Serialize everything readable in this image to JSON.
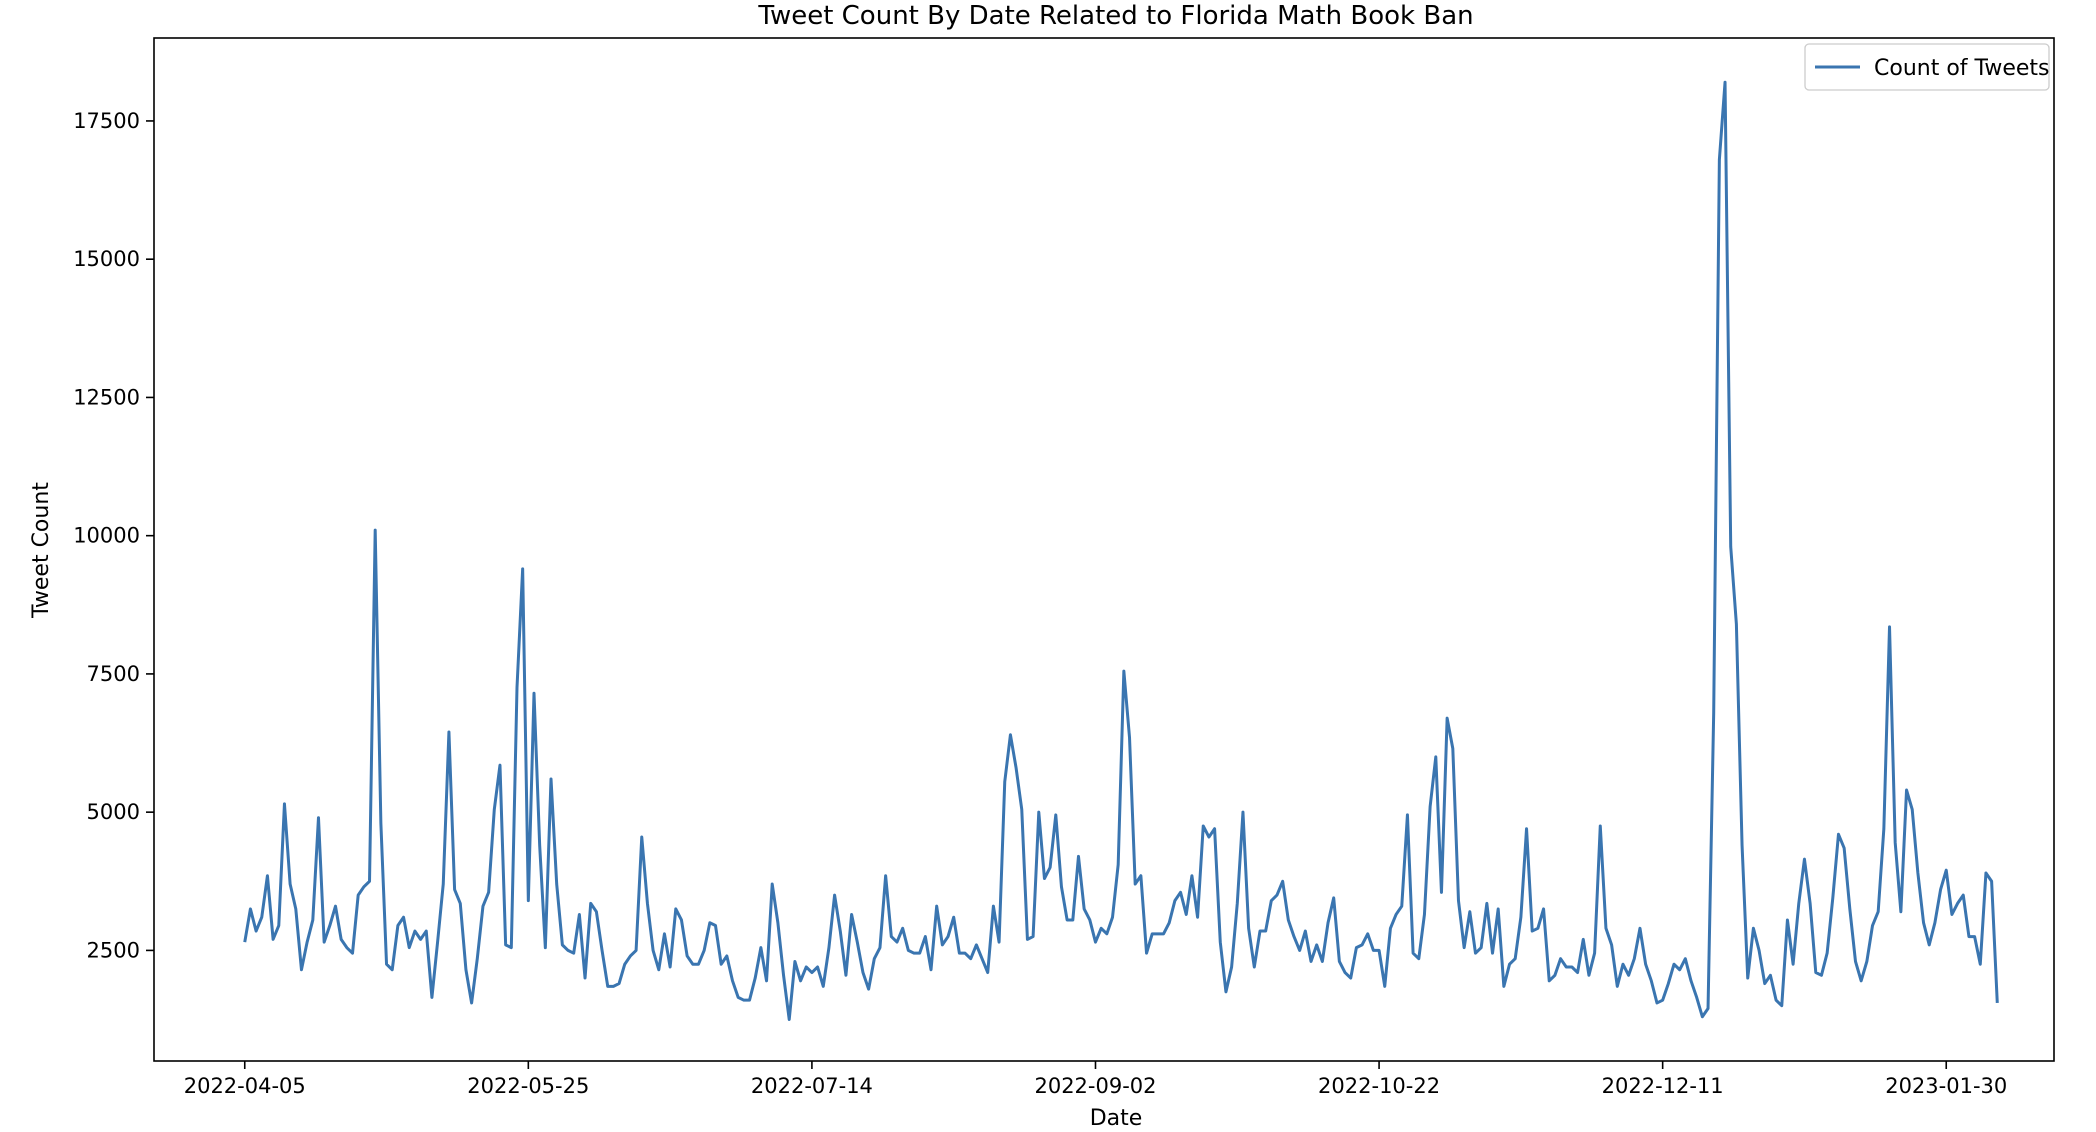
{
  "chart_data": {
    "type": "line",
    "title": "Tweet Count By Date Related to Florida Math Book Ban",
    "xlabel": "Date",
    "ylabel": "Tweet Count",
    "x_start": "2022-04-05",
    "x_end": "2023-02-08",
    "xlim": [
      "2022-03-20",
      "2023-02-18"
    ],
    "ylim": [
      500,
      19000
    ],
    "x_ticks": [
      "2022-04-05",
      "2022-05-25",
      "2022-07-14",
      "2022-09-02",
      "2022-10-22",
      "2022-12-11",
      "2023-01-30"
    ],
    "y_ticks": [
      2500,
      5000,
      7500,
      10000,
      12500,
      15000,
      17500
    ],
    "grid": false,
    "legend_position": "upper right",
    "line_color": "#3a75b0",
    "series": [
      {
        "name": "Count of Tweets",
        "values": [
          2650,
          3250,
          2850,
          3100,
          3850,
          2700,
          2950,
          5150,
          3700,
          3250,
          2150,
          2650,
          3050,
          4900,
          2650,
          2950,
          3300,
          2700,
          2550,
          2450,
          3500,
          3650,
          3750,
          10100,
          4800,
          2250,
          2150,
          2950,
          3100,
          2550,
          2850,
          2700,
          2850,
          1650,
          2650,
          3700,
          6450,
          3600,
          3350,
          2150,
          1550,
          2350,
          3300,
          3550,
          5050,
          5850,
          2600,
          2550,
          7250,
          9400,
          3400,
          7150,
          4400,
          2550,
          5600,
          3700,
          2600,
          2500,
          2450,
          3150,
          2000,
          3350,
          3200,
          2500,
          1850,
          1850,
          1900,
          2250,
          2400,
          2500,
          4550,
          3350,
          2500,
          2150,
          2800,
          2200,
          3250,
          3050,
          2400,
          2250,
          2250,
          2500,
          3000,
          2950,
          2250,
          2400,
          1950,
          1650,
          1600,
          1600,
          2000,
          2550,
          1950,
          3700,
          3000,
          2050,
          1250,
          2300,
          1950,
          2200,
          2100,
          2200,
          1850,
          2550,
          3500,
          2850,
          2050,
          3150,
          2650,
          2100,
          1800,
          2350,
          2550,
          3850,
          2750,
          2650,
          2900,
          2500,
          2450,
          2450,
          2750,
          2150,
          3300,
          2600,
          2750,
          3100,
          2450,
          2450,
          2350,
          2600,
          2350,
          2100,
          3300,
          2650,
          5550,
          6400,
          5800,
          5050,
          2700,
          2750,
          5000,
          3800,
          4000,
          4950,
          3650,
          3050,
          3050,
          4200,
          3250,
          3050,
          2650,
          2900,
          2800,
          3100,
          4050,
          7550,
          6350,
          3700,
          3850,
          2450,
          2800,
          2800,
          2800,
          3000,
          3400,
          3550,
          3150,
          3850,
          3100,
          4750,
          4550,
          4700,
          2650,
          1750,
          2200,
          3350,
          5000,
          2900,
          2200,
          2850,
          2850,
          3400,
          3500,
          3750,
          3050,
          2750,
          2500,
          2850,
          2300,
          2600,
          2300,
          3000,
          3450,
          2300,
          2100,
          2000,
          2550,
          2600,
          2800,
          2500,
          2500,
          1850,
          2900,
          3150,
          3300,
          4950,
          2450,
          2350,
          3150,
          5100,
          6000,
          3550,
          6700,
          6150,
          3400,
          2550,
          3200,
          2450,
          2550,
          3350,
          2450,
          3250,
          1850,
          2250,
          2350,
          3100,
          4700,
          2850,
          2900,
          3250,
          1950,
          2050,
          2350,
          2200,
          2200,
          2100,
          2700,
          2050,
          2450,
          4750,
          2900,
          2600,
          1850,
          2250,
          2050,
          2350,
          2900,
          2250,
          1950,
          1550,
          1600,
          1900,
          2250,
          2150,
          2350,
          1950,
          1650,
          1300,
          1450,
          6800,
          16800,
          18200,
          9800,
          8400,
          4400,
          2000,
          2900,
          2500,
          1900,
          2050,
          1600,
          1500,
          3050,
          2250,
          3350,
          4150,
          3350,
          2100,
          2050,
          2450,
          3450,
          4600,
          4350,
          3250,
          2300,
          1950,
          2300,
          2950,
          3200,
          4700,
          8350,
          4450,
          3200,
          5400,
          5050,
          3900,
          3000,
          2600,
          3000,
          3600,
          3950,
          3150,
          3350,
          3500,
          2750,
          2750,
          2250,
          3900,
          3750,
          1550
        ]
      }
    ]
  }
}
